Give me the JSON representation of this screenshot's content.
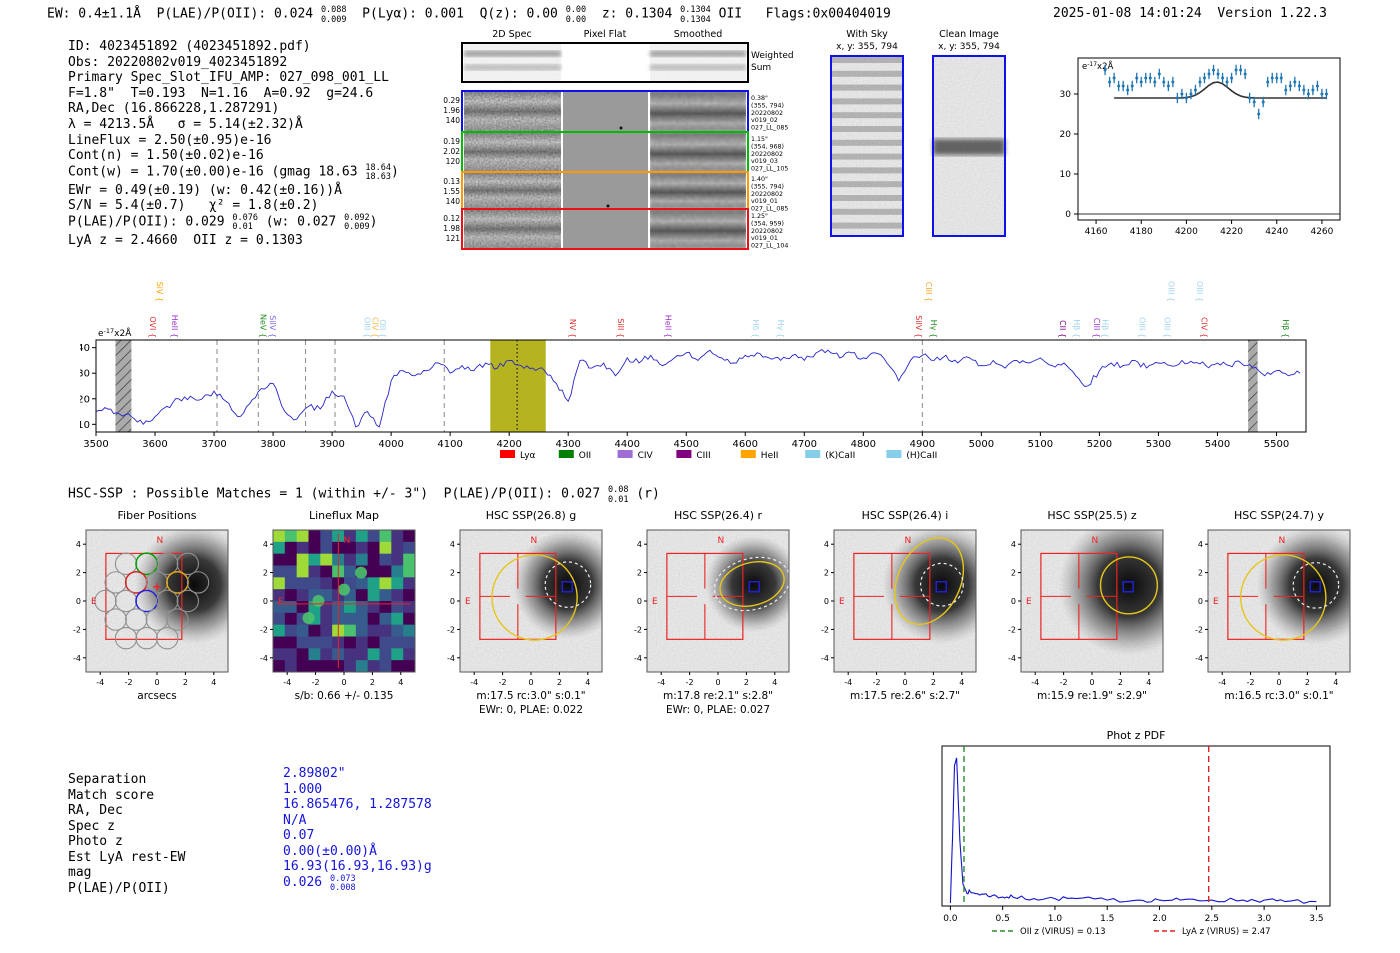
{
  "accent_colors": {
    "value_blue": "#1515dd",
    "spectrum_blue": "#2626cc",
    "marker_blue": "#1f77b4",
    "highlight_olive": "#b5b420",
    "red": "#ee2222",
    "aperture_yellow": "#e6c619",
    "compass_red": "#ee2222"
  },
  "header": {
    "left_segments": [
      {
        "t": "EW: 0.4±1.1Å  P(LAE)/P(OII): 0.024 "
      },
      {
        "frac": [
          "0.088",
          "0.009"
        ]
      },
      {
        "t": "  P(Lyα): 0.001  Q(z): 0.00 "
      },
      {
        "frac": [
          "0.00",
          "0.00"
        ]
      },
      {
        "t": "  z: 0.1304 "
      },
      {
        "frac": [
          "0.1304",
          "0.1304"
        ]
      },
      {
        "t": " OII   Flags:0x00404019"
      }
    ],
    "timestamp": "2025-01-08 14:01:24",
    "version": "Version 1.22.3"
  },
  "info_lines": [
    [
      {
        "t": "ID: 4023451892 (4023451892.pdf)"
      }
    ],
    [
      {
        "t": "Obs: 20220802v019_4023451892"
      }
    ],
    [
      {
        "t": "Primary Spec_Slot_IFU_AMP: 027_098_001_LL"
      }
    ],
    [
      {
        "t": "F=1.8\"  T=0.193  N=1.16  A=0.92  g=24.6"
      }
    ],
    [
      {
        "t": "RA,Dec (16.866228,1.287291)"
      }
    ],
    [
      {
        "t": "λ = 4213.5Å   σ = 5.14(±2.32)Å"
      }
    ],
    [
      {
        "t": "LineFlux = 2.50(±0.95)e-16"
      }
    ],
    [
      {
        "t": "Cont(n) = 1.50(±0.02)e-16"
      }
    ],
    [
      {
        "t": "Cont(w) = 1.70(±0.00)e-16 (gmag 18.63 "
      },
      {
        "frac": [
          "18.64",
          "18.63"
        ]
      },
      {
        "t": ")"
      }
    ],
    [
      {
        "t": "EWr = 0.49(±0.19) (w: 0.42(±0.16))Å"
      }
    ],
    [
      {
        "t": "S/N = 5.4(±0.7)   χ² = 1.8(±0.2)"
      }
    ],
    [
      {
        "t": "P(LAE)/P(OII): 0.029 "
      },
      {
        "frac": [
          "0.076",
          "0.01"
        ]
      },
      {
        "t": " (w: 0.027 "
      },
      {
        "frac": [
          "0.092",
          "0.009"
        ]
      },
      {
        "t": ")"
      }
    ],
    [
      {
        "t": "LyA z = 2.4660  OII z = 0.1303"
      }
    ]
  ],
  "montage": {
    "col_titles": [
      "2D Spec",
      "Pixel Flat",
      "Smoothed"
    ],
    "weighted_label": [
      "Weighted",
      "Sum"
    ],
    "rows": [
      {
        "border": "#1010ee",
        "left": [
          "0.29",
          "1.96",
          "140"
        ],
        "right": [
          "0.38\"",
          "(355, 794)",
          "20220802",
          "v019_02",
          "027_LL_085"
        ]
      },
      {
        "border": "#00bb00",
        "left": [
          "0.19",
          "2.02",
          "120"
        ],
        "right": [
          "1.15\"",
          "(354, 968)",
          "20220802",
          "v019_03",
          "027_LL_105"
        ]
      },
      {
        "border": "#ff9900",
        "left": [
          "0.13",
          "1.55",
          "140"
        ],
        "right": [
          "1.40\"",
          "(355, 794)",
          "20220802",
          "v019_01",
          "027_LL_085"
        ]
      },
      {
        "border": "#ee1111",
        "left": [
          "0.12",
          "1.98",
          "121"
        ],
        "right": [
          "1.25\"",
          "(354, 959)",
          "20220802",
          "v019_01",
          "027_LL_104"
        ]
      }
    ]
  },
  "sky_panels": [
    {
      "title": "With Sky",
      "subtitle": "x, y: 355, 794"
    },
    {
      "title": "Clean Image",
      "subtitle": "x, y: 355, 794"
    }
  ],
  "hsc_line_segments": [
    {
      "t": "HSC-SSP : Possible Matches = 1 (within +/- 3\")  P(LAE)/P(OII): 0.027 "
    },
    {
      "frac": [
        "0.08",
        "0.01"
      ]
    },
    {
      "t": " (r)"
    }
  ],
  "cutouts": {
    "tick_labels": [
      "-4",
      "-2",
      "0",
      "2",
      "4"
    ],
    "compass_n": "N",
    "compass_e": "E",
    "panels": [
      {
        "id": "fiber",
        "title": "Fiber Positions",
        "subs": [
          "arcsecs"
        ]
      },
      {
        "id": "lineflux",
        "title": "Lineflux Map",
        "subs": [
          "s/b: 0.66 +/- 0.135"
        ]
      },
      {
        "id": "g",
        "title": "HSC SSP(26.8) g",
        "subs": [
          "m:17.5 rc:3.0\"  s:0.1\"",
          "EWr: 0, PLAE: 0.022"
        ]
      },
      {
        "id": "r",
        "title": "HSC SSP(26.4) r",
        "subs": [
          "m:17.8  re:2.1\"  s:2.8\"",
          "EWr: 0, PLAE: 0.027"
        ]
      },
      {
        "id": "i",
        "title": "HSC SSP(26.4) i",
        "subs": [
          "m:17.5  re:2.6\"  s:2.7\""
        ]
      },
      {
        "id": "z",
        "title": "HSC SSP(25.5) z",
        "subs": [
          "m:15.9  re:1.9\"  s:2.9\""
        ]
      },
      {
        "id": "y",
        "title": "HSC SSP(24.7) y",
        "subs": [
          "m:16.5 rc:3.0\"  s:0.1\""
        ]
      }
    ]
  },
  "match_table": [
    {
      "label": "Separation",
      "segs": [
        {
          "t": "2.89802\""
        }
      ]
    },
    {
      "label": "Match score",
      "segs": [
        {
          "t": "1.000"
        }
      ]
    },
    {
      "label": "RA, Dec",
      "segs": [
        {
          "t": "16.865476, 1.287578"
        }
      ]
    },
    {
      "label": "Spec z",
      "segs": [
        {
          "t": "N/A"
        }
      ]
    },
    {
      "label": "Photo z",
      "segs": [
        {
          "t": "0.07"
        }
      ]
    },
    {
      "label": "Est LyA rest-EW",
      "segs": [
        {
          "t": "0.00(±0.00)Å"
        }
      ]
    },
    {
      "label": "mag",
      "segs": [
        {
          "t": "16.93(16.93,16.93)g"
        }
      ]
    },
    {
      "label": "P(LAE)/P(OII)",
      "segs": [
        {
          "t": "0.026 "
        },
        {
          "frac": [
            "0.073",
            "0.008"
          ]
        }
      ]
    }
  ],
  "chart_data": [
    {
      "id": "line_fit_inset",
      "type": "scatter",
      "ylabel_parts": {
        "base": "e",
        "exp": "-17",
        "rest": "x2Å"
      },
      "xlim": [
        4152,
        4268
      ],
      "ylim": [
        -1.5,
        39
      ],
      "x_ticks": [
        4160,
        4180,
        4200,
        4220,
        4240,
        4260
      ],
      "y_ticks": [
        0,
        10,
        20,
        30
      ],
      "x_start": 4164,
      "x_step": 2,
      "yerr": 1.3,
      "y": [
        36,
        33,
        34,
        32,
        32,
        31,
        32,
        34,
        33,
        34,
        34,
        33,
        35,
        33,
        32,
        33,
        29,
        30,
        29,
        30,
        31,
        33,
        34,
        35,
        36,
        35,
        34,
        33,
        34,
        36,
        36,
        35,
        29,
        28,
        25,
        28,
        33,
        34,
        34,
        34,
        31,
        32,
        33,
        32,
        31,
        30,
        31,
        32,
        30,
        30
      ],
      "fit": {
        "type": "gaussian",
        "baseline": 29,
        "amplitude": 4.0,
        "center": 4213.5,
        "sigma": 5.14,
        "range": [
          4168,
          4262
        ]
      },
      "zero_line": 0
    },
    {
      "id": "full_spectrum",
      "type": "line",
      "ylabel_parts": {
        "base": "e",
        "exp": "-17",
        "rest": "x2Å"
      },
      "xlim": [
        3500,
        5550
      ],
      "ylim": [
        7,
        43
      ],
      "x_ticks": [
        3500,
        3600,
        3700,
        3800,
        3900,
        4000,
        4100,
        4200,
        4300,
        4400,
        4500,
        4600,
        4700,
        4800,
        4900,
        5000,
        5100,
        5200,
        5300,
        5400,
        5500
      ],
      "y_ticks": [
        10,
        20,
        30,
        40
      ],
      "x_start": 3500,
      "x_step": 20,
      "y": [
        15,
        16,
        14,
        13,
        10,
        13,
        17,
        20,
        21,
        20,
        23,
        19,
        13,
        18,
        24,
        26,
        15,
        12,
        17,
        16,
        23,
        21,
        9,
        15,
        9,
        27,
        31,
        29,
        31,
        34,
        30,
        33,
        31,
        34,
        32,
        35,
        33,
        32,
        31,
        26,
        19,
        35,
        32,
        34,
        29,
        36,
        34,
        37,
        33,
        36,
        38,
        35,
        39,
        36,
        34,
        37,
        38,
        36,
        35,
        37,
        35,
        38,
        39,
        36,
        38,
        36,
        38,
        34,
        27,
        35,
        37,
        35,
        37,
        34,
        36,
        33,
        35,
        32,
        35,
        34,
        36,
        33,
        34,
        29,
        25,
        31,
        34,
        33,
        35,
        32,
        34,
        33,
        35,
        34,
        33,
        34,
        33,
        34,
        32,
        29,
        31,
        29,
        30
      ],
      "bands": {
        "hatched": [
          [
            3533,
            3560
          ],
          [
            5452,
            5468
          ]
        ],
        "highlight": [
          4168,
          4262
        ]
      },
      "vlines_dashed": [
        3705,
        3775,
        3855,
        3905,
        4090,
        4900
      ],
      "anchor_dotted": 4213.5,
      "line_labels": [
        {
          "wave": 3586,
          "text": "OVI",
          "color": "#e03030",
          "row": 2
        },
        {
          "wave": 3598,
          "text": "SiV",
          "color": "#ffa500",
          "row": 1
        },
        {
          "wave": 3624,
          "text": "HeII",
          "color": "#9932cc",
          "row": 2
        },
        {
          "wave": 3774,
          "text": "NeV",
          "color": "#228b22",
          "row": 2
        },
        {
          "wave": 3790,
          "text": "SiIV",
          "color": "#7b68ee",
          "row": 2
        },
        {
          "wave": 3950,
          "text": "OIII",
          "color": "#9ed3f0",
          "row": 2
        },
        {
          "wave": 3963,
          "text": "CIV",
          "color": "#f5b942",
          "row": 2
        },
        {
          "wave": 3976,
          "text": "OII",
          "color": "#9ed3f0",
          "row": 2
        },
        {
          "wave": 4298,
          "text": "NV",
          "color": "#e03030",
          "row": 2
        },
        {
          "wave": 4379,
          "text": "SiII",
          "color": "#e03030",
          "row": 2
        },
        {
          "wave": 4460,
          "text": "HeII",
          "color": "#9932cc",
          "row": 2
        },
        {
          "wave": 4608,
          "text": "Hδ",
          "color": "#9ed3f0",
          "row": 2
        },
        {
          "wave": 4650,
          "text": "Hγ",
          "color": "#9ed3f0",
          "row": 2
        },
        {
          "wave": 4884,
          "text": "SiIV",
          "color": "#e03030",
          "row": 2
        },
        {
          "wave": 4901,
          "text": "CIII",
          "color": "#f5a623",
          "row": 1
        },
        {
          "wave": 4910,
          "text": "Hγ",
          "color": "#228b22",
          "row": 2
        },
        {
          "wave": 5128,
          "text": "CII",
          "color": "#800080",
          "row": 2
        },
        {
          "wave": 5152,
          "text": "Hβ",
          "color": "#9ed3f0",
          "row": 2
        },
        {
          "wave": 5186,
          "text": "CIII",
          "color": "#9932cc",
          "row": 2
        },
        {
          "wave": 5200,
          "text": "Hβ",
          "color": "#9ed3f0",
          "row": 2
        },
        {
          "wave": 5263,
          "text": "OIII",
          "color": "#9ed3f0",
          "row": 2
        },
        {
          "wave": 5305,
          "text": "OIII",
          "color": "#9ed3f0",
          "row": 2
        },
        {
          "wave": 5312,
          "text": "OIII",
          "color": "#9ed3f0",
          "row": 1
        },
        {
          "wave": 5360,
          "text": "OIII",
          "color": "#9ed3f0",
          "row": 1
        },
        {
          "wave": 5368,
          "text": "CIV",
          "color": "#e03030",
          "row": 2
        },
        {
          "wave": 5506,
          "text": "Hβ",
          "color": "#228b22",
          "row": 2
        }
      ],
      "legend": [
        {
          "label": "Lyα",
          "color": "#ff0000"
        },
        {
          "label": "OII",
          "color": "#008000"
        },
        {
          "label": "CIV",
          "color": "#a06cd5"
        },
        {
          "label": "CIII",
          "color": "#800080"
        },
        {
          "label": "HeII",
          "color": "#ffa500"
        },
        {
          "label": "(K)CaII",
          "color": "#87ceeb"
        },
        {
          "label": "(H)CaII",
          "color": "#87ceeb"
        }
      ]
    },
    {
      "id": "phot_z_pdf",
      "type": "line",
      "title": "Phot z PDF",
      "xlim": [
        -0.08,
        3.63
      ],
      "ylim": [
        0,
        1.08
      ],
      "x_tick_labels": [
        "0.0",
        "0.5",
        "1.0",
        "1.5",
        "2.0",
        "2.5",
        "3.0",
        "3.5"
      ],
      "x_ticks": [
        0.0,
        0.5,
        1.0,
        1.5,
        2.0,
        2.5,
        3.0,
        3.5
      ],
      "x": [
        0,
        0.02,
        0.04,
        0.06,
        0.09,
        0.12,
        0.15,
        0.2,
        0.3,
        0.4,
        0.5,
        0.6,
        0.8,
        1.0,
        1.2,
        1.5,
        1.8,
        2.0,
        2.2,
        2.5,
        2.8,
        3.0,
        3.2,
        3.5
      ],
      "y": [
        0.02,
        0.45,
        0.95,
        1.0,
        0.45,
        0.15,
        0.1,
        0.09,
        0.08,
        0.07,
        0.06,
        0.06,
        0.05,
        0.05,
        0.05,
        0.04,
        0.04,
        0.04,
        0.04,
        0.04,
        0.04,
        0.04,
        0.03,
        0.03
      ],
      "vlines": [
        {
          "x": 0.13,
          "color": "#2e8b2e",
          "label": "OII z (VIRUS) = 0.13"
        },
        {
          "x": 2.47,
          "color": "#dd2222",
          "label": "LyA z (VIRUS) = 2.47"
        }
      ]
    }
  ]
}
